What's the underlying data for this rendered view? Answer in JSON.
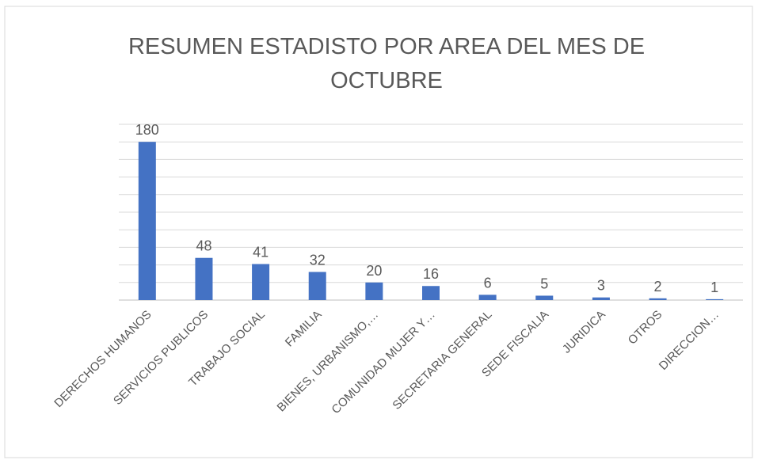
{
  "chart_data": {
    "type": "bar",
    "title": "RESUMEN ESTADISTO POR AREA DEL MES DE OCTUBRE",
    "categories": [
      "DERECHOS HUMANOS",
      "SERVICIOS PUBLICOS",
      "TRABAJO SOCIAL",
      "FAMILIA",
      "BIENES, URBANISMO,…",
      "COMUNIDAD MUJER Y…",
      "SECRETARIA GENERAL",
      "SEDE FISCALIA",
      "JURIDICA",
      "OTROS",
      "DIRECCION…"
    ],
    "values": [
      180,
      48,
      41,
      32,
      20,
      16,
      6,
      5,
      3,
      2,
      1
    ],
    "color": "#4472c4",
    "ylim": [
      0,
      200
    ],
    "yticks": [
      0,
      20,
      40,
      60,
      80,
      100,
      120,
      140,
      160,
      180,
      200
    ],
    "grid": true
  }
}
